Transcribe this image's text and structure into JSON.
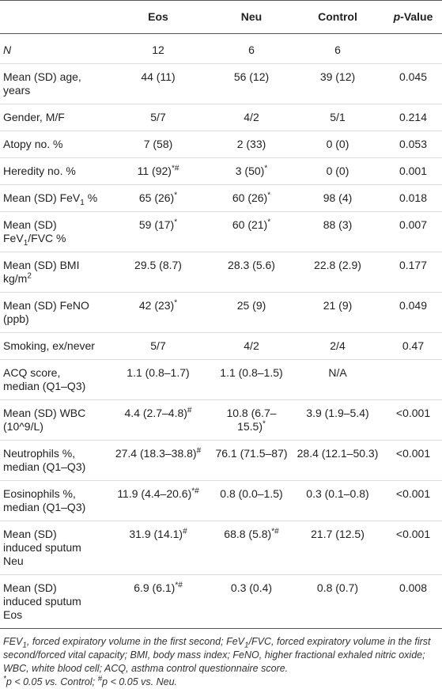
{
  "table": {
    "header": [
      [],
      [
        "Eos"
      ],
      [
        "Neu"
      ],
      [
        "Control"
      ],
      [
        {
          "text": "p",
          "style": "italic"
        },
        "-Value"
      ]
    ],
    "rows": [
      [
        [
          {
            "text": "N",
            "style": "italic"
          }
        ],
        [
          "12"
        ],
        [
          "6"
        ],
        [
          "6"
        ],
        []
      ],
      [
        [
          "Mean (SD) age,\nyears"
        ],
        [
          "44 (11)"
        ],
        [
          "56 (12)"
        ],
        [
          "39 (12)"
        ],
        [
          "0.045"
        ]
      ],
      [
        [
          "Gender, M/F"
        ],
        [
          "5/7"
        ],
        [
          "4/2"
        ],
        [
          "5/1"
        ],
        [
          "0.214"
        ]
      ],
      [
        [
          "Atopy no. %"
        ],
        [
          "7 (58)"
        ],
        [
          "2 (33)"
        ],
        [
          "0 (0)"
        ],
        [
          "0.053"
        ]
      ],
      [
        [
          "Heredity no. %"
        ],
        [
          "11 (92)",
          {
            "text": "*#",
            "style": "sup"
          }
        ],
        [
          "3 (50)",
          {
            "text": "*",
            "style": "sup"
          }
        ],
        [
          "0 (0)"
        ],
        [
          "0.001"
        ]
      ],
      [
        [
          "Mean (SD) FeV",
          {
            "text": "1",
            "style": "sub"
          },
          " %"
        ],
        [
          "65 (26)",
          {
            "text": "*",
            "style": "sup"
          }
        ],
        [
          "60 (26)",
          {
            "text": "*",
            "style": "sup"
          }
        ],
        [
          "98 (4)"
        ],
        [
          "0.018"
        ]
      ],
      [
        [
          "Mean (SD)\nFeV",
          {
            "text": "1",
            "style": "sub"
          },
          "/FVC %"
        ],
        [
          "59 (17)",
          {
            "text": "*",
            "style": "sup"
          }
        ],
        [
          "60 (21)",
          {
            "text": "*",
            "style": "sup"
          }
        ],
        [
          "88 (3)"
        ],
        [
          "0.007"
        ]
      ],
      [
        [
          "Mean (SD) BMI\nkg/m",
          {
            "text": "2",
            "style": "sup"
          }
        ],
        [
          "29.5 (8.7)"
        ],
        [
          "28.3 (5.6)"
        ],
        [
          "22.8 (2.9)"
        ],
        [
          "0.177"
        ]
      ],
      [
        [
          "Mean (SD) FeNO\n(ppb)"
        ],
        [
          "42 (23)",
          {
            "text": "*",
            "style": "sup"
          }
        ],
        [
          "25 (9)"
        ],
        [
          "21 (9)"
        ],
        [
          "0.049"
        ]
      ],
      [
        [
          "Smoking, ex/never"
        ],
        [
          "5/7"
        ],
        [
          "4/2"
        ],
        [
          "2/4"
        ],
        [
          "0.47"
        ]
      ],
      [
        [
          "ACQ score,\nmedian (Q1–Q3)"
        ],
        [
          "1.1 (0.8–1.7)"
        ],
        [
          "1.1 (0.8–1.5)"
        ],
        [
          "N/A"
        ],
        []
      ],
      [
        [
          "Mean (SD) WBC\n(10^9/L)"
        ],
        [
          "4.4 (2.7–4.8)",
          {
            "text": "#",
            "style": "sup"
          }
        ],
        [
          "10.8 (6.7–15.5)",
          {
            "text": "*",
            "style": "sup"
          }
        ],
        [
          "3.9 (1.9–5.4)"
        ],
        [
          "<0.001"
        ]
      ],
      [
        [
          "Neutrophils %,\nmedian (Q1–Q3)"
        ],
        [
          "27.4 (18.3–38.8)",
          {
            "text": "#",
            "style": "sup"
          }
        ],
        [
          "76.1 (71.5–87)"
        ],
        [
          "28.4 (12.1–50.3)"
        ],
        [
          "<0.001"
        ]
      ],
      [
        [
          "Eosinophils %,\nmedian (Q1–Q3)"
        ],
        [
          "11.9 (4.4–20.6)",
          {
            "text": "*#",
            "style": "sup"
          }
        ],
        [
          "0.8 (0.0–1.5)"
        ],
        [
          "0.3 (0.1–0.8)"
        ],
        [
          "<0.001"
        ]
      ],
      [
        [
          "Mean (SD)\ninduced sputum\nNeu"
        ],
        [
          "31.9 (14.1)",
          {
            "text": "#",
            "style": "sup"
          }
        ],
        [
          "68.8 (5.8)",
          {
            "text": "*#",
            "style": "sup"
          }
        ],
        [
          "21.7 (12.5)"
        ],
        [
          "<0.001"
        ]
      ],
      [
        [
          "Mean (SD)\ninduced sputum\nEos"
        ],
        [
          "6.9 (6.1)",
          {
            "text": "*#",
            "style": "sup"
          }
        ],
        [
          "0.3 (0.4)"
        ],
        [
          "0.8 (0.7)"
        ],
        [
          "0.008"
        ]
      ]
    ]
  },
  "footnote": [
    [
      "FEV",
      {
        "text": "1",
        "style": "sub"
      },
      ", forced expiratory volume in the first second; FeV",
      {
        "text": "1",
        "style": "sub"
      },
      "/FVC, forced expiratory volume in the first second/forced vital capacity; BMI, body mass index; FeNO, higher fractional exhaled nitric oxide; WBC, white blood cell; ACQ, asthma control questionnaire score."
    ],
    [
      {
        "text": "*",
        "style": "sup"
      },
      "p < 0.05 vs. Control; ",
      {
        "text": "#",
        "style": "sup"
      },
      "p < 0.05 vs. Neu."
    ]
  ]
}
